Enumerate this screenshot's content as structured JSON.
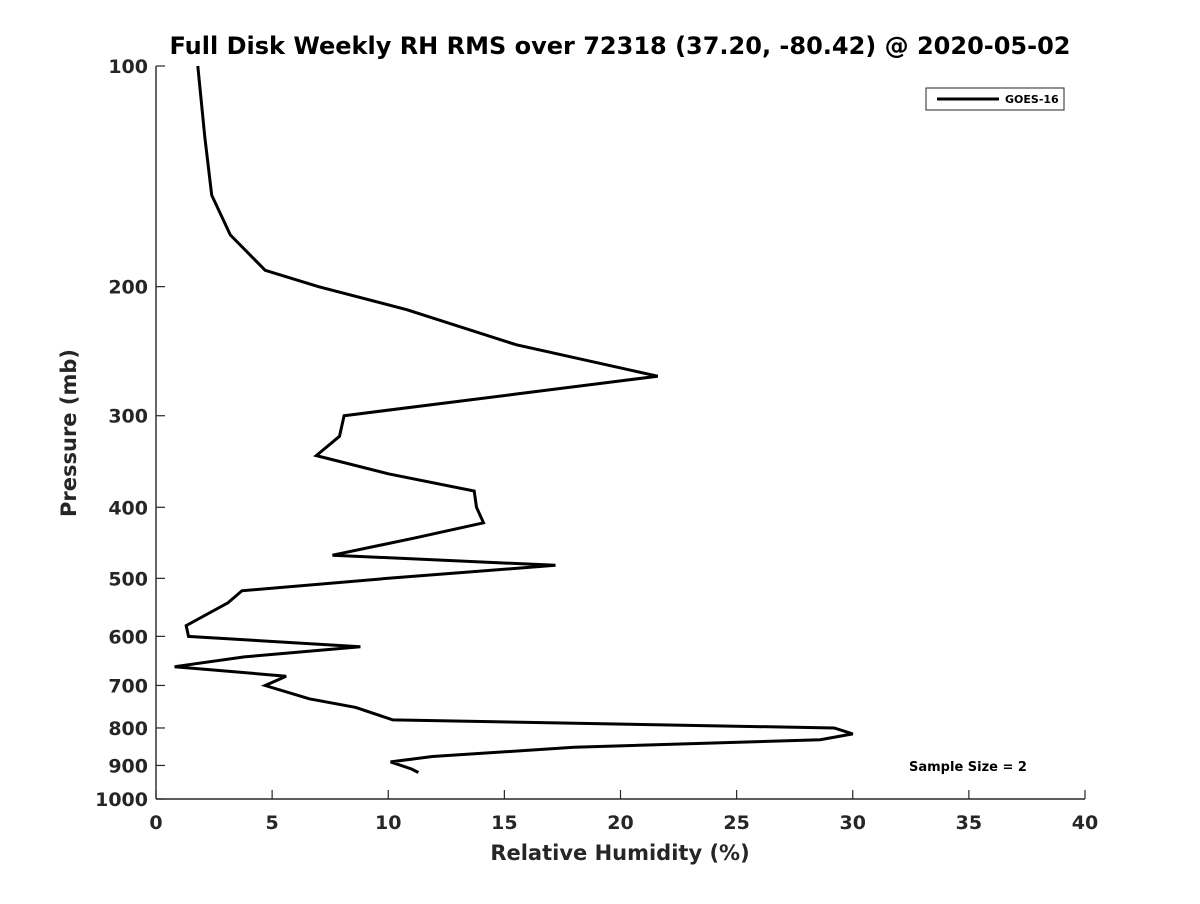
{
  "chart_data": {
    "type": "line",
    "title": "Full Disk Weekly RH RMS over 72318 (37.20, -80.42) @ 2020-05-02",
    "xlabel": "Relative Humidity (%)",
    "ylabel": "Pressure (mb)",
    "xlim": [
      0,
      40
    ],
    "ylim": [
      100,
      1000
    ],
    "y_scale": "log",
    "y_reversed": true,
    "x_ticks": [
      "0",
      "5",
      "10",
      "15",
      "20",
      "25",
      "30",
      "35",
      "40"
    ],
    "y_ticks": [
      "100",
      "200",
      "300",
      "400",
      "500",
      "600",
      "700",
      "800",
      "900",
      "1000"
    ],
    "grid": false,
    "legend_position": "top-right",
    "series": [
      {
        "name": "GOES-16",
        "color": "#000000",
        "points": [
          [
            1.8,
            100
          ],
          [
            2.1,
            125
          ],
          [
            2.4,
            150
          ],
          [
            3.2,
            170
          ],
          [
            4.7,
            190
          ],
          [
            7.0,
            200
          ],
          [
            10.8,
            215
          ],
          [
            15.5,
            240
          ],
          [
            21.6,
            265
          ],
          [
            15.6,
            280
          ],
          [
            8.1,
            300
          ],
          [
            7.9,
            320
          ],
          [
            6.9,
            340
          ],
          [
            10.0,
            360
          ],
          [
            13.7,
            380
          ],
          [
            13.8,
            400
          ],
          [
            14.1,
            420
          ],
          [
            11.2,
            440
          ],
          [
            7.6,
            465
          ],
          [
            17.2,
            480
          ],
          [
            10.0,
            500
          ],
          [
            3.7,
            520
          ],
          [
            3.1,
            540
          ],
          [
            1.3,
            580
          ],
          [
            1.4,
            600
          ],
          [
            8.8,
            620
          ],
          [
            3.8,
            640
          ],
          [
            0.8,
            660
          ],
          [
            5.6,
            680
          ],
          [
            4.7,
            700
          ],
          [
            6.6,
            730
          ],
          [
            8.6,
            750
          ],
          [
            10.2,
            780
          ],
          [
            29.2,
            800
          ],
          [
            30.0,
            815
          ],
          [
            28.6,
            830
          ],
          [
            18.0,
            850
          ],
          [
            11.9,
            875
          ],
          [
            10.1,
            890
          ],
          [
            11.0,
            910
          ],
          [
            11.3,
            920
          ]
        ]
      }
    ],
    "annotations": [
      "Sample Size = 2"
    ]
  }
}
